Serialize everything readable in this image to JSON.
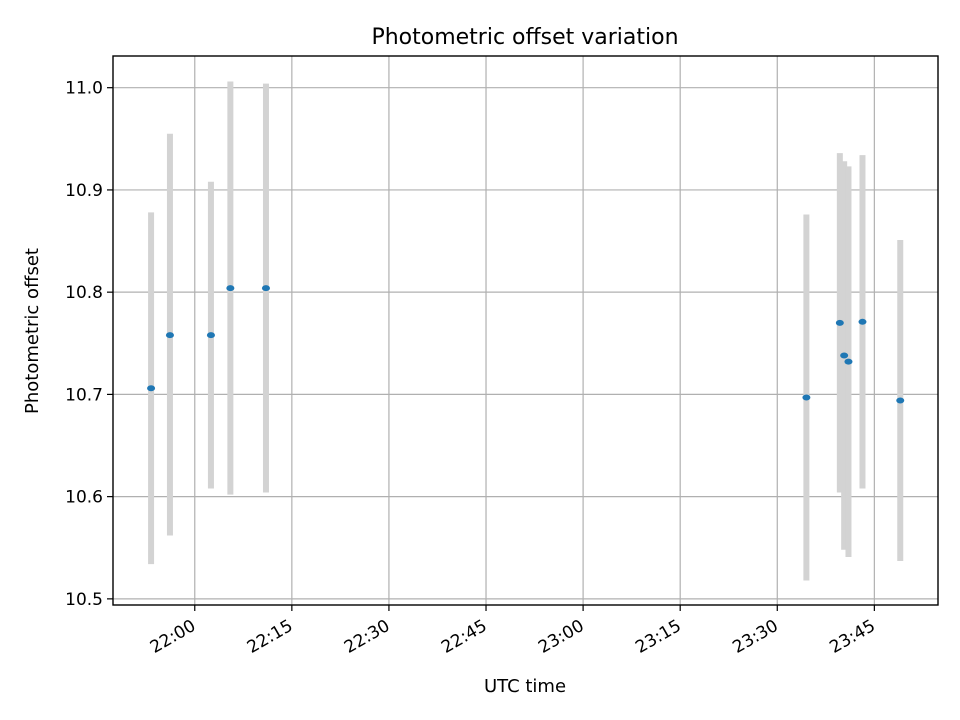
{
  "chart_data": {
    "type": "scatter",
    "title": "Photometric offset variation",
    "xlabel": "UTC time",
    "ylabel": "Photometric offset",
    "x_tick_labels": [
      "22:00",
      "22:15",
      "22:30",
      "22:45",
      "23:00",
      "23:15",
      "23:30",
      "23:45"
    ],
    "x_ticks": [
      "22:00",
      "22:15",
      "22:30",
      "22:45",
      "23:00",
      "23:15",
      "23:30",
      "23:45"
    ],
    "xlim": [
      "21:47:22",
      "23:54:50"
    ],
    "y_tick_labels": [
      "10.5",
      "10.6",
      "10.7",
      "10.8",
      "10.9",
      "11.0"
    ],
    "y_ticks": [
      10.5,
      10.6,
      10.7,
      10.8,
      10.9,
      11.0
    ],
    "ylim": [
      10.494,
      11.031
    ],
    "grid": true,
    "colors": {
      "marker": "#1f77b4",
      "error_bar": "#d3d3d3",
      "grid": "#b0b0b0"
    },
    "points": [
      {
        "time": "21:53:15",
        "y": 10.706,
        "err_low": 10.534,
        "err_high": 10.878
      },
      {
        "time": "21:56:10",
        "y": 10.758,
        "err_low": 10.562,
        "err_high": 10.955
      },
      {
        "time": "22:02:30",
        "y": 10.758,
        "err_low": 10.608,
        "err_high": 10.908
      },
      {
        "time": "22:05:30",
        "y": 10.804,
        "err_low": 10.602,
        "err_high": 11.006
      },
      {
        "time": "22:11:00",
        "y": 10.804,
        "err_low": 10.604,
        "err_high": 11.004
      },
      {
        "time": "23:34:30",
        "y": 10.697,
        "err_low": 10.518,
        "err_high": 10.876
      },
      {
        "time": "23:39:40",
        "y": 10.77,
        "err_low": 10.604,
        "err_high": 10.936
      },
      {
        "time": "23:40:20",
        "y": 10.738,
        "err_low": 10.548,
        "err_high": 10.928
      },
      {
        "time": "23:41:00",
        "y": 10.732,
        "err_low": 10.541,
        "err_high": 10.923
      },
      {
        "time": "23:43:10",
        "y": 10.771,
        "err_low": 10.608,
        "err_high": 10.934
      },
      {
        "time": "23:49:00",
        "y": 10.694,
        "err_low": 10.537,
        "err_high": 10.851
      }
    ]
  }
}
